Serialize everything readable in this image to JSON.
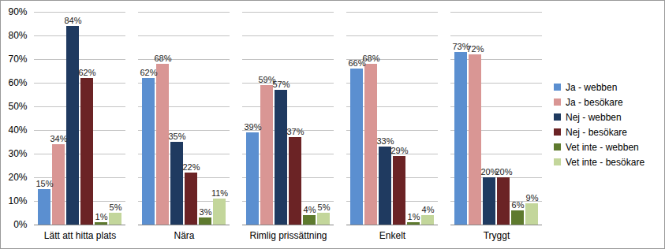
{
  "chart_data": {
    "type": "bar",
    "categories": [
      "Lätt att hitta plats",
      "Nära",
      "Rimlig prissättning",
      "Enkelt",
      "Tryggt"
    ],
    "series": [
      {
        "name": "Ja - webben",
        "color": "#5b8fd0",
        "values": [
          15,
          62,
          39,
          66,
          73
        ],
        "value_labels": [
          "15%",
          "62%",
          "39%",
          "66%",
          "73%"
        ]
      },
      {
        "name": "Ja - besökare",
        "color": "#d99694",
        "values": [
          34,
          68,
          59,
          68,
          72
        ],
        "value_labels": [
          "34%",
          "68%",
          "59%",
          "68%",
          "72%"
        ]
      },
      {
        "name": "Nej - webben",
        "color": "#1f3a60",
        "values": [
          84,
          35,
          57,
          33,
          20
        ],
        "value_labels": [
          "84%",
          "35%",
          "57%",
          "33%",
          "20%"
        ]
      },
      {
        "name": "Nej - besökare",
        "color": "#6b2325",
        "values": [
          62,
          22,
          37,
          29,
          20
        ],
        "value_labels": [
          "62%",
          "22%",
          "37%",
          "29%",
          "20%"
        ]
      },
      {
        "name": "Vet inte - webben",
        "color": "#5e7a2e",
        "values": [
          1,
          3,
          4,
          1,
          6
        ],
        "value_labels": [
          "1%",
          "3%",
          "4%",
          "1%",
          "6%"
        ]
      },
      {
        "name": "Vet inte - besökare",
        "color": "#c3d69b",
        "values": [
          5,
          11,
          5,
          4,
          9
        ],
        "value_labels": [
          "5%",
          "11%",
          "5%",
          "4%",
          "9%"
        ]
      }
    ],
    "ylim": [
      0,
      90
    ],
    "yticks": [
      {
        "value": 0,
        "label": "0%"
      },
      {
        "value": 10,
        "label": "10%"
      },
      {
        "value": 20,
        "label": "20%"
      },
      {
        "value": 30,
        "label": "30%"
      },
      {
        "value": 40,
        "label": "40%"
      },
      {
        "value": 50,
        "label": "50%"
      },
      {
        "value": 60,
        "label": "60%"
      },
      {
        "value": 70,
        "label": "70%"
      },
      {
        "value": 80,
        "label": "80%"
      },
      {
        "value": 90,
        "label": "90%"
      }
    ],
    "grid": true,
    "data_labels": true,
    "legend": "right"
  }
}
